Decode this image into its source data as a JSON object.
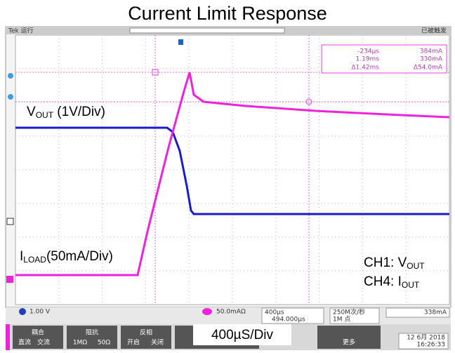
{
  "title": "Current Limit Response",
  "top_bar": {
    "left": "Tek 运行",
    "right": "已被触发"
  },
  "cursor_readout": {
    "t1": "-234µs",
    "t2": "1.19ms",
    "dt": "Δ1.42ms",
    "v1": "384mA",
    "v2": "330mA",
    "dv": "Δ54.0mA"
  },
  "annotations": {
    "vout": {
      "main": "V",
      "sub": "OUT",
      "rest": " (1V/Div)"
    },
    "iload": {
      "main": "I",
      "sub": "LOAD",
      "rest": "(50mA/Div)"
    },
    "ch1": {
      "main": "CH1: V",
      "sub": "OUT"
    },
    "ch4": {
      "main": "CH4:  I",
      "sub": "OUT"
    },
    "timebase": "400µS/Div"
  },
  "status_bar": {
    "ch1": "1.00 V",
    "ch4": "50.0mAΩ",
    "time": "400µs",
    "delay": "494.000µs",
    "rate": "250M次/秒",
    "points": "1M 点",
    "trigger": "338mA"
  },
  "menu": {
    "coupling": {
      "label": "耦合",
      "options": [
        "直流",
        "交流"
      ]
    },
    "impedance": {
      "label": "阻抗",
      "options": [
        "1MΩ",
        "50Ω"
      ]
    },
    "invert": {
      "label": "反相",
      "options": [
        "开启",
        "关闭"
      ]
    },
    "more": "更多",
    "date": "12 6月 2018",
    "time": "16:26:33"
  }
}
